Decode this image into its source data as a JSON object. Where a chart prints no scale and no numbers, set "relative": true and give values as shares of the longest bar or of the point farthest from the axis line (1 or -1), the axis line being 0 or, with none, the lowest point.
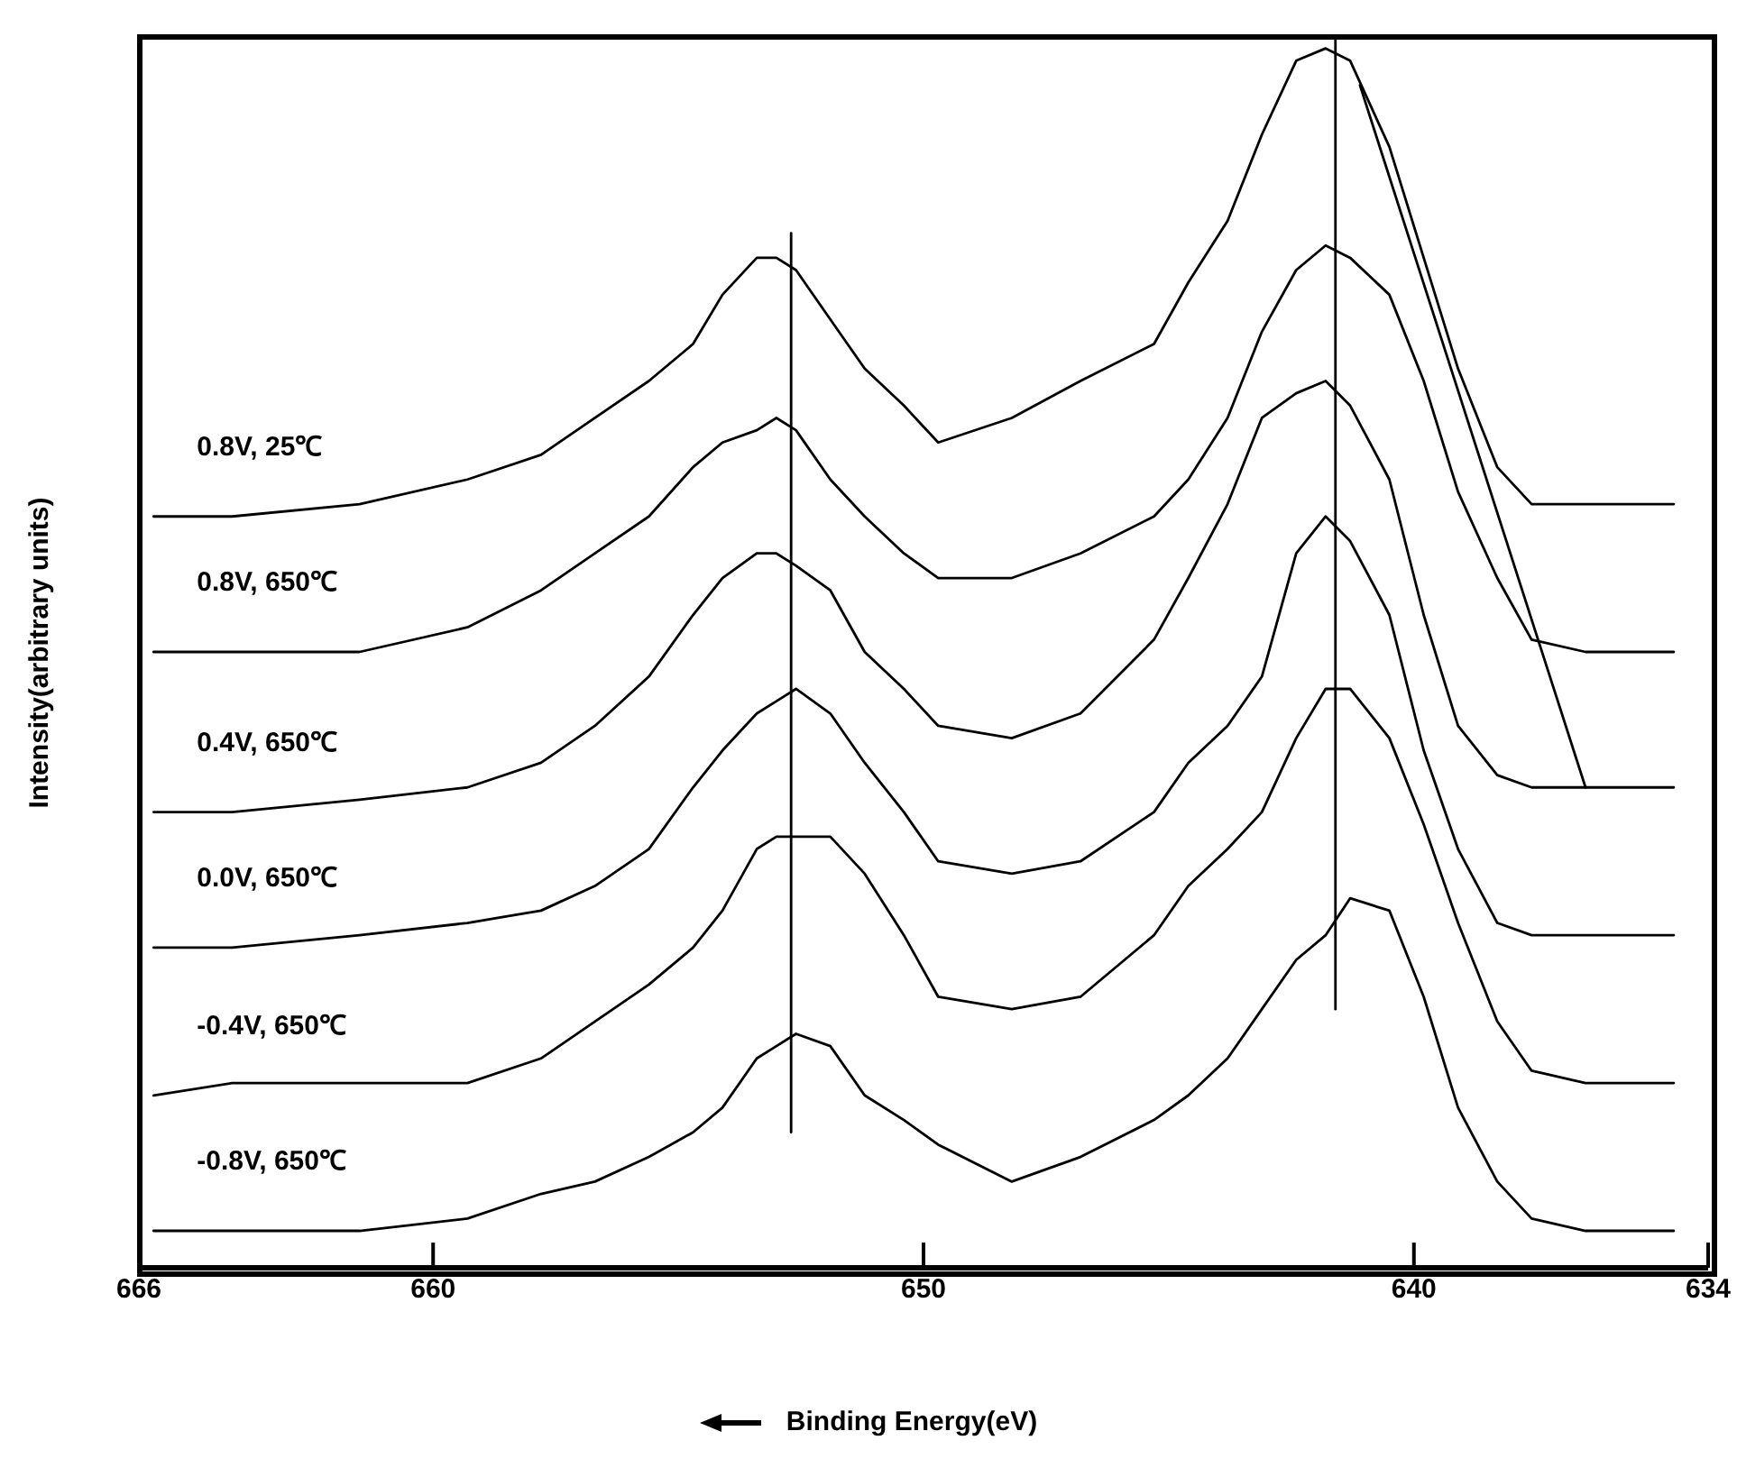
{
  "chart_data": {
    "type": "line",
    "xlabel": "Binding Energy(eV)",
    "ylabel": "Intensity(arbitrary units)",
    "relative": true,
    "xlim": [
      666,
      634
    ],
    "xticks": [
      666,
      660,
      650,
      640,
      634
    ],
    "x": [
      665.7,
      664.1,
      661.5,
      659.3,
      657.8,
      656.7,
      655.6,
      654.7,
      654.1,
      653.4,
      653.0,
      652.6,
      651.9,
      651.2,
      650.4,
      649.7,
      648.2,
      646.8,
      645.3,
      644.6,
      643.8,
      643.1,
      642.4,
      641.8,
      641.3,
      640.5,
      639.8,
      639.1,
      638.3,
      637.6,
      636.5,
      634.7
    ],
    "series": [
      {
        "name": "0.8V,  25℃",
        "color": "#000000",
        "values": [
          0.61,
          0.61,
          0.62,
          0.64,
          0.66,
          0.69,
          0.72,
          0.75,
          0.79,
          0.82,
          0.82,
          0.81,
          0.77,
          0.73,
          0.7,
          0.67,
          0.69,
          0.72,
          0.75,
          0.8,
          0.85,
          0.92,
          0.98,
          0.99,
          0.98,
          0.91,
          0.82,
          0.73,
          0.65,
          0.62,
          0.62,
          0.62
        ]
      },
      {
        "name": "0.8V, 650℃",
        "color": "#000000",
        "values": [
          0.5,
          0.5,
          0.5,
          0.52,
          0.55,
          0.58,
          0.61,
          0.65,
          0.67,
          0.68,
          0.69,
          0.68,
          0.64,
          0.61,
          0.58,
          0.56,
          0.56,
          0.58,
          0.61,
          0.64,
          0.69,
          0.76,
          0.81,
          0.83,
          0.82,
          0.79,
          0.72,
          0.63,
          0.56,
          0.51,
          0.5,
          0.5
        ]
      },
      {
        "name": "0.4V, 650℃",
        "color": "#000000",
        "values": [
          0.37,
          0.37,
          0.38,
          0.39,
          0.41,
          0.44,
          0.48,
          0.53,
          0.56,
          0.58,
          0.58,
          0.57,
          0.55,
          0.5,
          0.47,
          0.44,
          0.43,
          0.45,
          0.51,
          0.56,
          0.62,
          0.69,
          0.71,
          0.72,
          0.7,
          0.64,
          0.53,
          0.44,
          0.4,
          0.39,
          0.39,
          0.39
        ]
      },
      {
        "name": "0.0V, 650℃",
        "color": "#000000",
        "values": [
          0.26,
          0.26,
          0.27,
          0.28,
          0.29,
          0.31,
          0.34,
          0.39,
          0.42,
          0.45,
          0.46,
          0.47,
          0.45,
          0.41,
          0.37,
          0.33,
          0.32,
          0.33,
          0.37,
          0.41,
          0.44,
          0.48,
          0.58,
          0.61,
          0.59,
          0.53,
          0.42,
          0.34,
          0.28,
          0.27,
          0.27,
          0.27
        ]
      },
      {
        "name": "-0.4V, 650℃",
        "color": "#000000",
        "values": [
          0.14,
          0.15,
          0.15,
          0.15,
          0.17,
          0.2,
          0.23,
          0.26,
          0.29,
          0.34,
          0.35,
          0.35,
          0.35,
          0.32,
          0.27,
          0.22,
          0.21,
          0.22,
          0.27,
          0.31,
          0.34,
          0.37,
          0.43,
          0.47,
          0.47,
          0.43,
          0.36,
          0.28,
          0.2,
          0.16,
          0.15,
          0.15
        ]
      },
      {
        "name": "-0.8V, 650℃",
        "color": "#000000",
        "values": [
          0.03,
          0.03,
          0.03,
          0.04,
          0.06,
          0.07,
          0.09,
          0.11,
          0.13,
          0.17,
          0.18,
          0.19,
          0.18,
          0.14,
          0.12,
          0.1,
          0.07,
          0.09,
          0.12,
          0.14,
          0.17,
          0.21,
          0.25,
          0.27,
          0.3,
          0.29,
          0.22,
          0.13,
          0.07,
          0.04,
          0.03,
          0.03
        ]
      },
      {
        "type": "line",
        "color": "#000000",
        "x": [
          652.7,
          652.7
        ],
        "values": [
          0.84,
          0.11
        ]
      },
      {
        "type": "line",
        "color": "#000000",
        "x": [
          641.6,
          641.6
        ],
        "values": [
          1.0,
          0.21
        ]
      },
      {
        "type": "line",
        "color": "#000000",
        "x": [
          641.1,
          636.5
        ],
        "values": [
          0.96,
          0.39
        ]
      }
    ]
  }
}
